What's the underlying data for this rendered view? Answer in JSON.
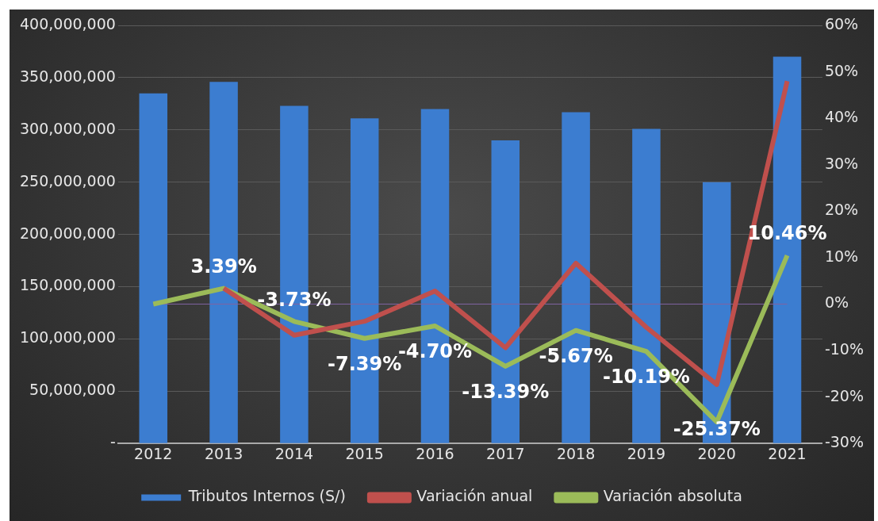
{
  "chart_data": {
    "type": "bar",
    "categories": [
      "2012",
      "2013",
      "2014",
      "2015",
      "2016",
      "2017",
      "2018",
      "2019",
      "2020",
      "2021"
    ],
    "series": [
      {
        "name": "Tributos Internos (S/)",
        "color": "#3c7dd0",
        "values": [
          335000000,
          346000000,
          323000000,
          311000000,
          320000000,
          290000000,
          317000000,
          301000000,
          250000000,
          370000000
        ]
      },
      {
        "name": "Variación anual",
        "type": "line",
        "axis": "y2",
        "color": "#c0504d",
        "values": [
          null,
          3.4,
          -6.7,
          -3.7,
          2.8,
          -9.4,
          8.8,
          -5.0,
          -17.3,
          48
        ]
      },
      {
        "name": "Variación absoluta",
        "type": "line",
        "axis": "y2",
        "color": "#9bbb59",
        "values": [
          0,
          3.39,
          -3.73,
          -7.39,
          -4.7,
          -13.39,
          -5.67,
          -10.19,
          -25.37,
          10.46
        ],
        "value_labels": [
          null,
          "3.39%",
          "-3.73%",
          "-7.39%",
          "-4.70%",
          "-13.39%",
          "-5.67%",
          "-10.19%",
          "-25.37%",
          "10.46%"
        ]
      },
      {
        "type": "line",
        "axis": "y2",
        "color": "#8064a2",
        "values": [
          0,
          0,
          0,
          0,
          0,
          0,
          0,
          0,
          0,
          0
        ]
      }
    ],
    "ylim": [
      0,
      400000000
    ],
    "yticks": [
      {
        "value": 0,
        "label": "-"
      },
      {
        "value": 50000000,
        "label": "50,000,000"
      },
      {
        "value": 100000000,
        "label": "100,000,000"
      },
      {
        "value": 150000000,
        "label": "150,000,000"
      },
      {
        "value": 200000000,
        "label": "200,000,000"
      },
      {
        "value": 250000000,
        "label": "250,000,000"
      },
      {
        "value": 300000000,
        "label": "300,000,000"
      },
      {
        "value": 350000000,
        "label": "350,000,000"
      },
      {
        "value": 400000000,
        "label": "400,000,000"
      }
    ],
    "y2lim": [
      -30,
      60
    ],
    "y2ticks": [
      {
        "value": -30,
        "label": "-30%"
      },
      {
        "value": -20,
        "label": "-20%"
      },
      {
        "value": -10,
        "label": "-10%"
      },
      {
        "value": 0,
        "label": "0%"
      },
      {
        "value": 10,
        "label": "10%"
      },
      {
        "value": 20,
        "label": "20%"
      },
      {
        "value": 30,
        "label": "30%"
      },
      {
        "value": 40,
        "label": "40%"
      },
      {
        "value": 50,
        "label": "50%"
      },
      {
        "value": 60,
        "label": "60%"
      }
    ],
    "grid": "y",
    "legend": "bottom",
    "marker": "none",
    "line_style": "solid"
  }
}
